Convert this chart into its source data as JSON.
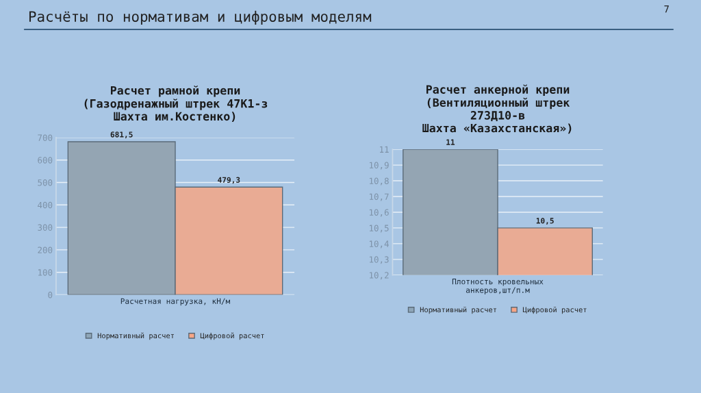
{
  "chart_data": [
    {
      "type": "bar",
      "title": "Расчет рамной крепи\n(Газодренажный штрек 47К1-з\nШахта им.Костенко)",
      "annotations": [
        "Расчёты по нормативам и цифровым моделям",
        "7"
      ],
      "categories": [
        "Расчетная нагрузка, кН/м"
      ],
      "series": [
        {
          "name": "Нормативный расчет",
          "color": "#8fa6b8",
          "values": [
            681.5
          ],
          "value_labels": [
            "681,5"
          ]
        },
        {
          "name": "Цифровой расчет",
          "color": "#f7a586",
          "values": [
            479.3
          ],
          "value_labels": [
            "479,3"
          ]
        }
      ],
      "ylim": [
        0,
        700
      ],
      "yticks": [
        0,
        100,
        200,
        300,
        400,
        500,
        600,
        700
      ],
      "grid": "y",
      "legend": "bottom"
    },
    {
      "type": "bar",
      "title": "Расчет анкерной крепи\n(Вентиляционный штрек\n273Д10-в\nШахта «Казахстанская»)",
      "categories": [
        "Плотность кровельных\nанкеров,шт/п.м"
      ],
      "series": [
        {
          "name": "Нормативный расчет",
          "color": "#8fa6b8",
          "values": [
            11
          ],
          "value_labels": [
            "11"
          ]
        },
        {
          "name": "Цифровой расчет",
          "color": "#f7a586",
          "values": [
            10.5
          ],
          "value_labels": [
            "10,5"
          ]
        }
      ],
      "ylim": [
        10.2,
        11
      ],
      "yticks": [
        {
          "value": 10.2,
          "label": "10,2"
        },
        {
          "value": 10.3,
          "label": "10,3"
        },
        {
          "value": 10.4,
          "label": "10,4"
        },
        {
          "value": 10.5,
          "label": "10,5"
        },
        {
          "value": 10.6,
          "label": "10,6"
        },
        {
          "value": 10.7,
          "label": "10,7"
        },
        {
          "value": 10.8,
          "label": "10,8"
        },
        {
          "value": 10.9,
          "label": "10,9"
        },
        {
          "value": 11,
          "label": "11"
        }
      ],
      "grid": "y",
      "legend": "bottom"
    }
  ]
}
